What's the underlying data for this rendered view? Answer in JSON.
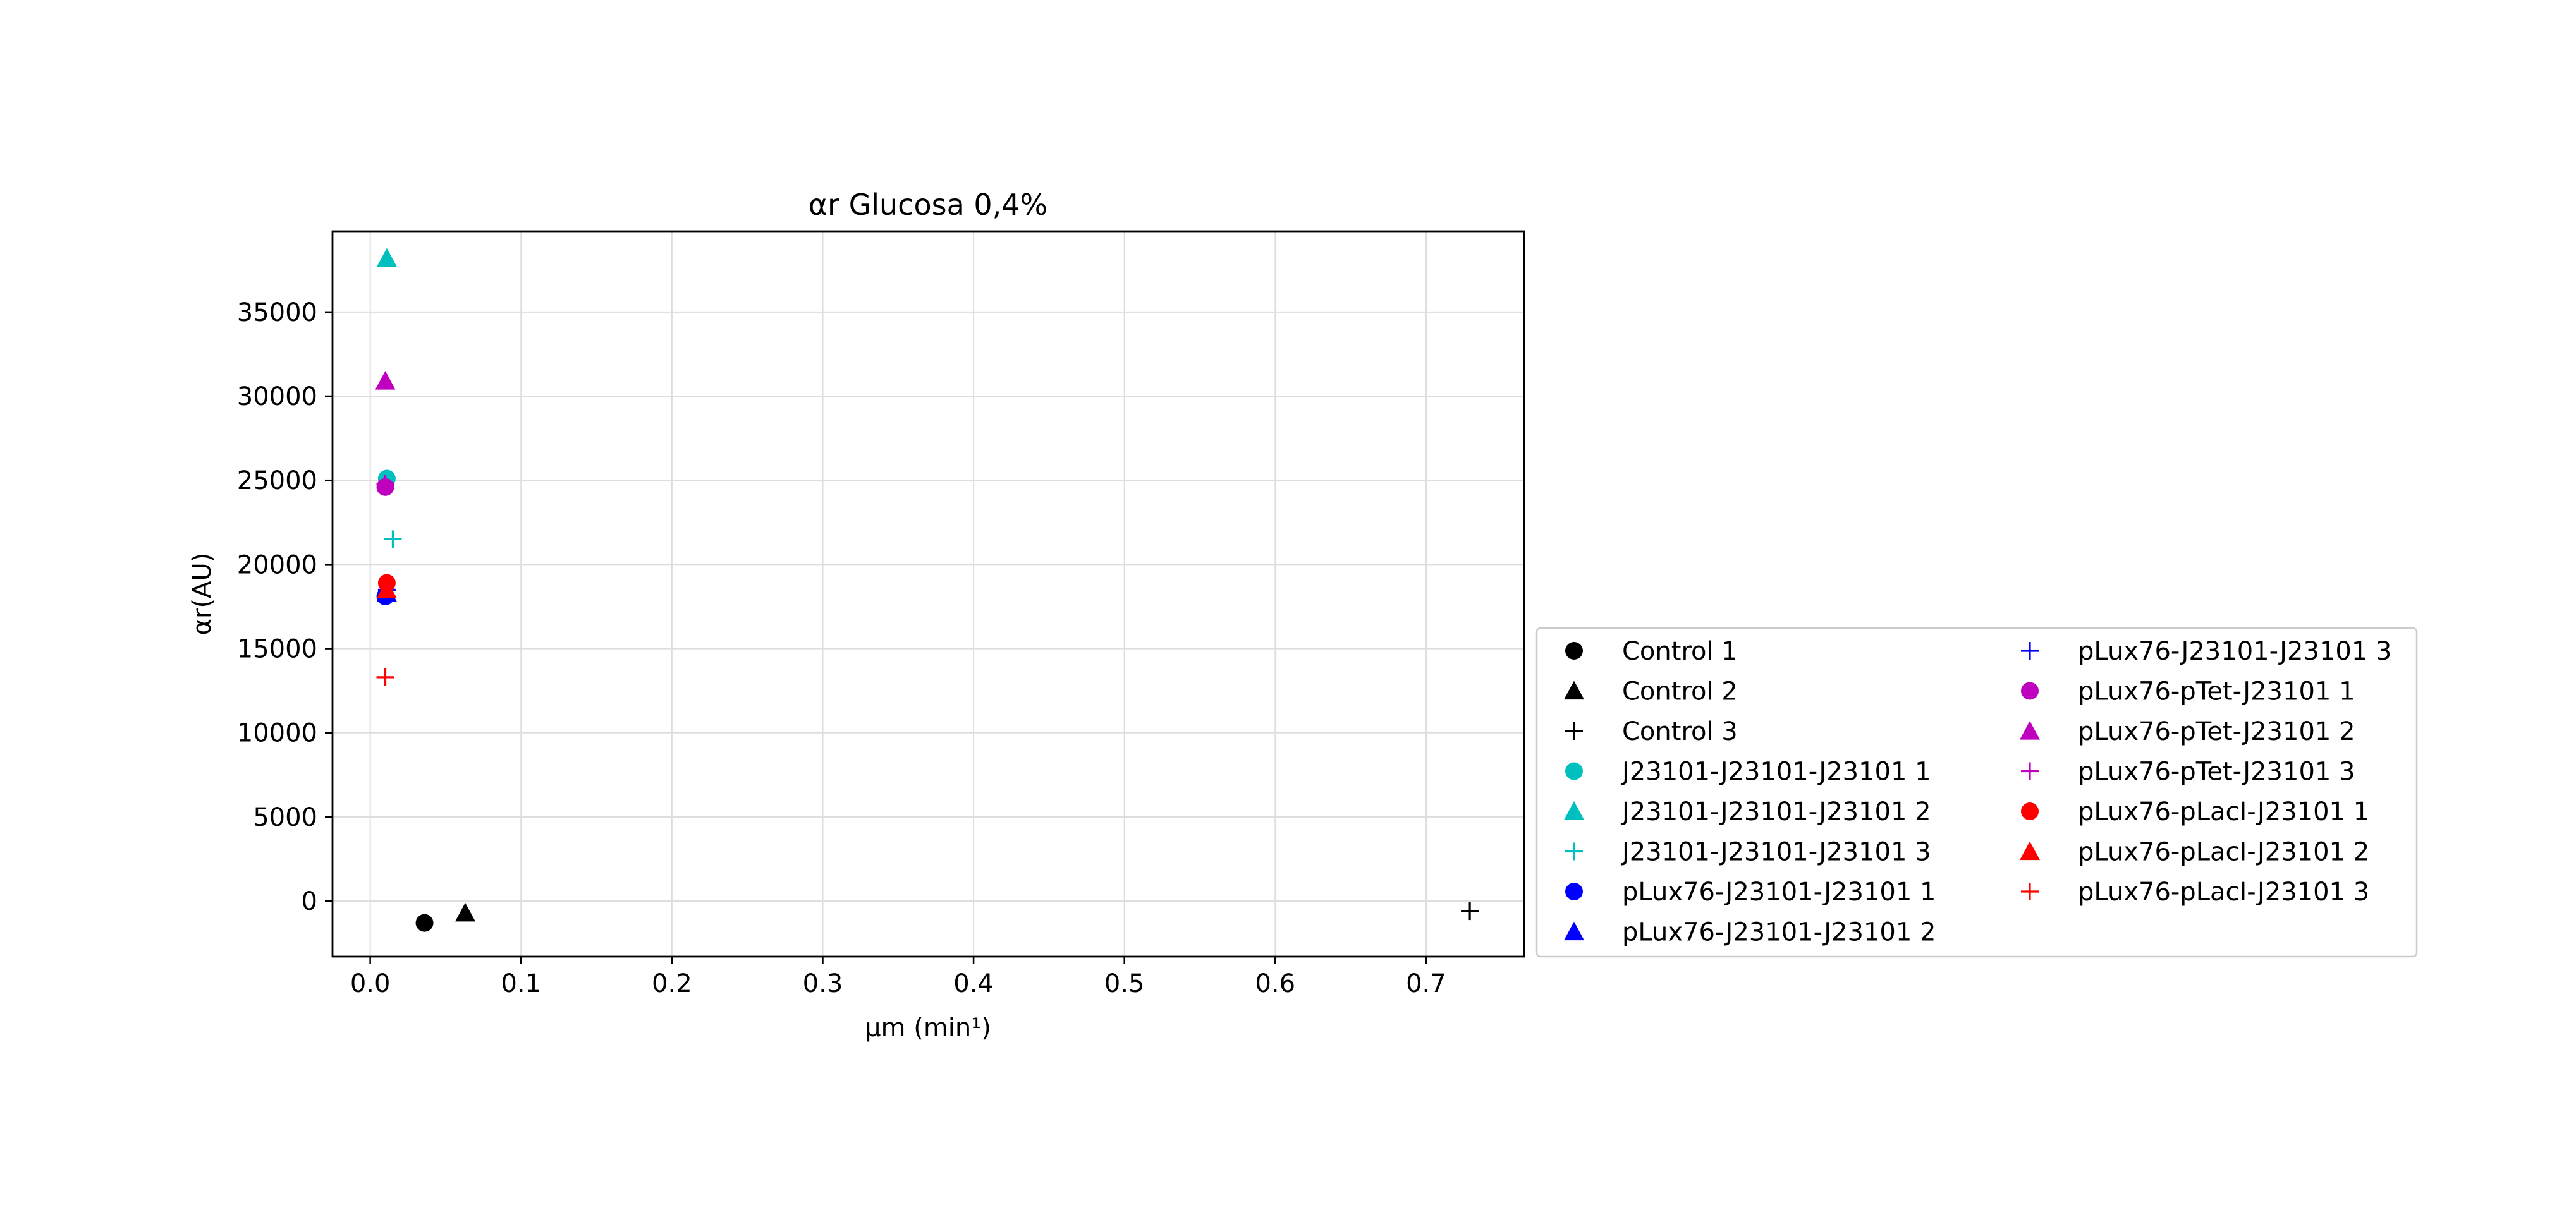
{
  "chart_data": {
    "type": "scatter",
    "title": "αr Glucosa 0,4%",
    "xlabel": "μm (min¹)",
    "ylabel": "αr(AU)",
    "xlim": [
      -0.025,
      0.765
    ],
    "ylim": [
      -3300,
      39800
    ],
    "xticks": [
      "0.0",
      "0.1",
      "0.2",
      "0.3",
      "0.4",
      "0.5",
      "0.6",
      "0.7"
    ],
    "yticks": [
      "0",
      "5000",
      "10000",
      "15000",
      "20000",
      "25000",
      "30000",
      "35000"
    ],
    "xtick_values": [
      0,
      0.1,
      0.2,
      0.3,
      0.4,
      0.5,
      0.6,
      0.7
    ],
    "ytick_values": [
      0,
      5000,
      10000,
      15000,
      20000,
      25000,
      30000,
      35000
    ],
    "grid": true,
    "legend_position": "outside-right",
    "series": [
      {
        "name": "Control 1",
        "marker": "circle",
        "color": "#000000",
        "points": [
          [
            0.036,
            -1300
          ]
        ]
      },
      {
        "name": "Control 2",
        "marker": "triangle",
        "color": "#000000",
        "points": [
          [
            0.063,
            -700
          ]
        ]
      },
      {
        "name": "Control 3",
        "marker": "plus",
        "color": "#000000",
        "points": [
          [
            0.729,
            -600
          ]
        ]
      },
      {
        "name": "J23101-J23101-J23101 1",
        "marker": "circle",
        "color": "#00bfbf",
        "points": [
          [
            0.011,
            25100
          ]
        ]
      },
      {
        "name": "J23101-J23101-J23101 2",
        "marker": "triangle",
        "color": "#00bfbf",
        "points": [
          [
            0.011,
            38200
          ]
        ]
      },
      {
        "name": "J23101-J23101-J23101 3",
        "marker": "plus",
        "color": "#00bfbf",
        "points": [
          [
            0.015,
            21500
          ]
        ]
      },
      {
        "name": "pLux76-J23101-J23101 1",
        "marker": "circle",
        "color": "#0000ff",
        "points": [
          [
            0.01,
            18100
          ]
        ]
      },
      {
        "name": "pLux76-J23101-J23101 2",
        "marker": "triangle",
        "color": "#0000ff",
        "points": [
          [
            0.011,
            18300
          ]
        ]
      },
      {
        "name": "pLux76-J23101-J23101 3",
        "marker": "plus",
        "color": "#0000ff",
        "points": [
          [
            0.011,
            18500
          ]
        ]
      },
      {
        "name": "pLux76-pTet-J23101 1",
        "marker": "circle",
        "color": "#bf00bf",
        "points": [
          [
            0.01,
            24600
          ]
        ]
      },
      {
        "name": "pLux76-pTet-J23101 2",
        "marker": "triangle",
        "color": "#bf00bf",
        "points": [
          [
            0.01,
            30900
          ]
        ]
      },
      {
        "name": "pLux76-pTet-J23101 3",
        "marker": "plus",
        "color": "#bf00bf",
        "points": [
          [
            0.01,
            24800
          ]
        ]
      },
      {
        "name": "pLux76-pLacI-J23101 1",
        "marker": "circle",
        "color": "#ff0000",
        "points": [
          [
            0.011,
            18900
          ]
        ]
      },
      {
        "name": "pLux76-pLacI-J23101 2",
        "marker": "triangle",
        "color": "#ff0000",
        "points": [
          [
            0.011,
            18500
          ]
        ]
      },
      {
        "name": "pLux76-pLacI-J23101 3",
        "marker": "plus",
        "color": "#ff0000",
        "points": [
          [
            0.01,
            13300
          ]
        ]
      }
    ]
  }
}
